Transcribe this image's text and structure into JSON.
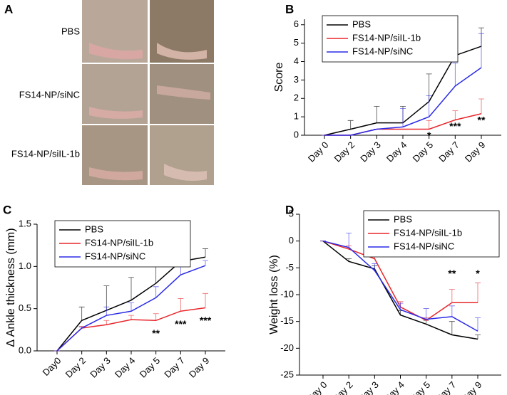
{
  "photo_panel": {
    "panel_label": "A",
    "rows": [
      "PBS",
      "FS14-NP/siNC",
      "FS14-NP/siIL-1b"
    ]
  },
  "chart_data": [
    {
      "type": "line",
      "panel_label": "B",
      "y_label": "Score",
      "categories": [
        "Day 0",
        "Day 2",
        "Day 3",
        "Day 4",
        "Day 5",
        "Day 7",
        "Day 9"
      ],
      "ylim": [
        0,
        6.3
      ],
      "yticks": [
        0,
        1,
        2,
        3,
        4,
        5,
        6
      ],
      "legend": "upper left",
      "series": [
        {
          "name": "PBS",
          "color": "#000000",
          "values": [
            0,
            0.33,
            0.67,
            0.67,
            1.83,
            4.33,
            4.83
          ],
          "errors": [
            0,
            0.47,
            0.9,
            0.9,
            1.5,
            0.85,
            1.0
          ]
        },
        {
          "name": "FS14-NP/siIL-1b",
          "color": "#e8262a",
          "values": [
            0,
            0,
            0.33,
            0.33,
            0.33,
            0.83,
            1.17
          ],
          "errors": [
            0,
            0,
            0,
            0,
            0.47,
            0.5,
            0.8
          ]
        },
        {
          "name": "FS14-NP/siNC",
          "color": "#2a2ae8",
          "values": [
            0,
            0,
            0.33,
            0.45,
            1.0,
            2.67,
            3.67
          ],
          "errors": [
            0,
            0,
            0,
            1.0,
            1.15,
            1.25,
            1.85
          ]
        }
      ],
      "significance": [
        null,
        null,
        null,
        null,
        "*",
        "***",
        "**"
      ]
    },
    {
      "type": "line",
      "panel_label": "C",
      "y_label": "Δ Ankle thickness (mm)",
      "categories": [
        "Day0",
        "Day 2",
        "Day 3",
        "Day 4",
        "Day 5",
        "Day 7",
        "Day 9"
      ],
      "ylim": [
        0,
        1.5
      ],
      "yticks": [
        {
          "value": 0,
          "label": "0.0"
        },
        0.5,
        {
          "value": 1,
          "label": "1.0"
        },
        1.5
      ],
      "legend": "upper left",
      "series": [
        {
          "name": "PBS",
          "color": "#000000",
          "values": [
            0,
            0.36,
            0.48,
            0.6,
            0.8,
            1.06,
            1.11
          ],
          "errors": [
            0,
            0.16,
            0.29,
            0.27,
            0.35,
            0.28,
            0.1
          ]
        },
        {
          "name": "FS14-NP/siIL-1b",
          "color": "#e8262a",
          "values": [
            0,
            0.27,
            0.31,
            0.37,
            0.36,
            0.47,
            0.51
          ],
          "errors": [
            0,
            0.02,
            0.05,
            0.05,
            0.08,
            0.15,
            0.17
          ]
        },
        {
          "name": "FS14-NP/siNC",
          "color": "#2a2ae8",
          "values": [
            0,
            0.27,
            0.42,
            0.47,
            0.63,
            0.9,
            1.01
          ],
          "errors": [
            0,
            0.01,
            0.1,
            0.1,
            0.13,
            0.16,
            0.06
          ]
        }
      ],
      "significance": [
        null,
        null,
        null,
        null,
        "**",
        "***",
        "***"
      ]
    },
    {
      "type": "line",
      "panel_label": "D",
      "y_label": "Weight loss (%)",
      "categories": [
        "Day 0",
        "Day 2",
        "Day 3",
        "Day 4",
        "Day 5",
        "Day 7",
        "Day 9"
      ],
      "ylim": [
        -25,
        5
      ],
      "yticks": [
        -25,
        -20,
        -15,
        -10,
        -5,
        0,
        5
      ],
      "legend": "upper right",
      "series": [
        {
          "name": "PBS",
          "color": "#000000",
          "values": [
            0,
            -3.8,
            -5.2,
            -13.8,
            -15.5,
            -17.5,
            -18.3
          ],
          "errors": [
            0,
            0.5,
            0.6,
            0.8,
            0.7,
            2.5,
            0.8
          ]
        },
        {
          "name": "FS14-NP/siIL-1b",
          "color": "#e8262a",
          "values": [
            0,
            -1.5,
            -3.3,
            -12.3,
            -14.8,
            -11.5,
            -11.5
          ],
          "errors": [
            0,
            0.6,
            1.8,
            1.0,
            0.5,
            2.5,
            3.7
          ]
        },
        {
          "name": "FS14-NP/siNC",
          "color": "#2a2ae8",
          "values": [
            0,
            -1.2,
            -5.5,
            -12.8,
            -14.6,
            -14.1,
            -16.8
          ],
          "errors": [
            0,
            2.7,
            1.3,
            1.2,
            2.0,
            2.0,
            2.5
          ]
        }
      ],
      "significance": [
        null,
        null,
        null,
        null,
        null,
        "**",
        "*"
      ]
    }
  ]
}
